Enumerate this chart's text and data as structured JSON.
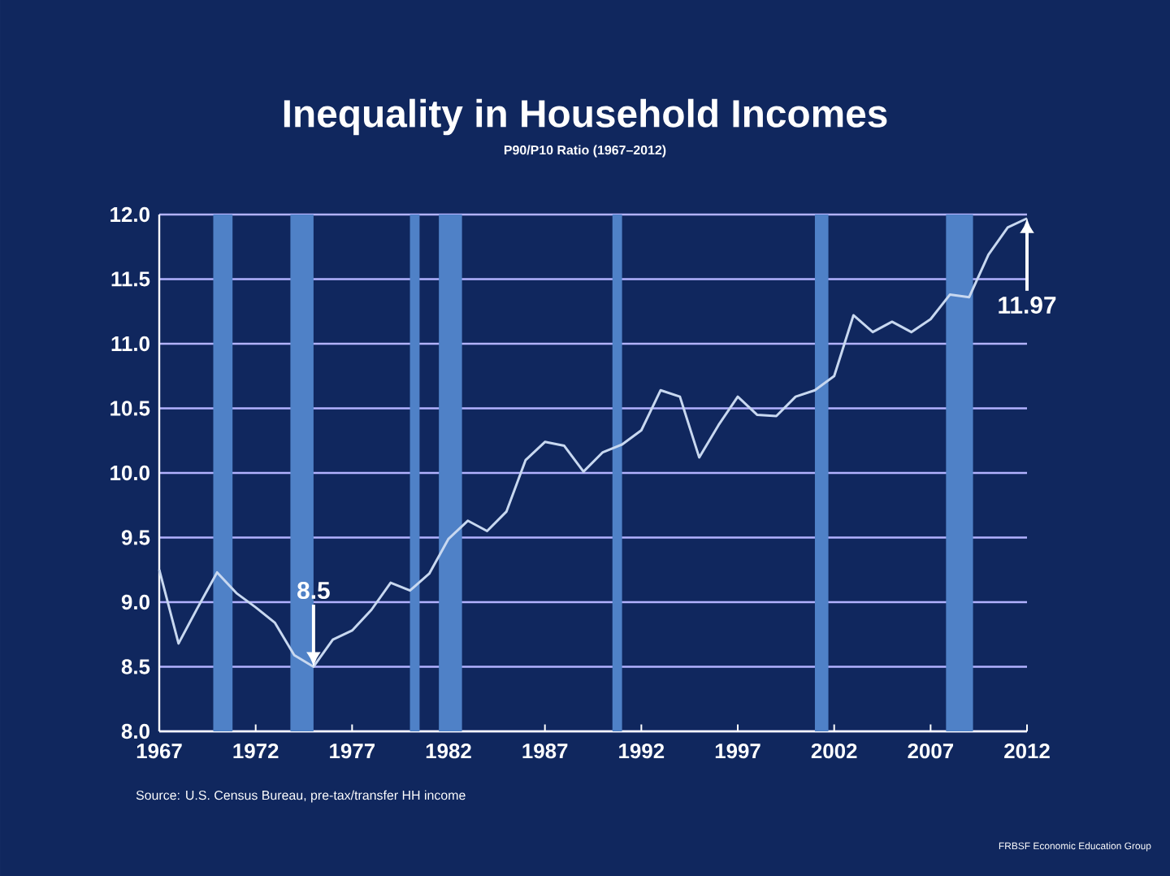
{
  "chart_data": {
    "type": "line",
    "title": "Inequality in Household Incomes",
    "subtitle": "P90/P10  Ratio (1967–2012)",
    "x": [
      1967,
      1968,
      1969,
      1970,
      1971,
      1972,
      1973,
      1974,
      1975,
      1976,
      1977,
      1978,
      1979,
      1980,
      1981,
      1982,
      1983,
      1984,
      1985,
      1986,
      1987,
      1988,
      1989,
      1990,
      1991,
      1992,
      1993,
      1994,
      1995,
      1996,
      1997,
      1998,
      1999,
      2000,
      2001,
      2002,
      2003,
      2004,
      2005,
      2006,
      2007,
      2008,
      2009,
      2010,
      2011,
      2012
    ],
    "series": [
      {
        "color": "#c8d8f0",
        "values": [
          9.25,
          8.68,
          8.96,
          9.23,
          9.07,
          8.96,
          8.84,
          8.59,
          8.5,
          8.71,
          8.78,
          8.94,
          9.15,
          9.09,
          9.22,
          9.49,
          9.63,
          9.55,
          9.7,
          10.1,
          10.24,
          10.21,
          10.01,
          10.16,
          10.22,
          10.33,
          10.64,
          10.59,
          10.12,
          10.37,
          10.59,
          10.45,
          10.44,
          10.59,
          10.64,
          10.75,
          11.22,
          11.09,
          11.17,
          11.09,
          11.19,
          11.38,
          11.36,
          11.69,
          11.9,
          11.97
        ]
      }
    ],
    "xlim": [
      1967,
      2012
    ],
    "ylim": [
      8,
      12
    ],
    "xticks": [
      1967,
      1972,
      1977,
      1982,
      1987,
      1992,
      1997,
      2002,
      2007,
      2012
    ],
    "yticks": [
      {
        "value": 8,
        "label": "8.0"
      },
      {
        "value": 8.5,
        "label": "8.5"
      },
      {
        "value": 9,
        "label": "9.0"
      },
      {
        "value": 9.5,
        "label": "9.5"
      },
      {
        "value": 10,
        "label": "10.0"
      },
      {
        "value": 10.5,
        "label": "10.5"
      },
      {
        "value": 11,
        "label": "11.0"
      },
      {
        "value": 11.5,
        "label": "11.5"
      },
      {
        "value": 12,
        "label": "12.0"
      }
    ],
    "grid": "y",
    "marker": "none",
    "line_style": "solid",
    "bands": [
      {
        "axis": "x",
        "from": 1969.8,
        "to": 1970.8,
        "color": "#4f81c7"
      },
      {
        "axis": "x",
        "from": 1973.8,
        "to": 1975.0,
        "color": "#4f81c7"
      },
      {
        "axis": "x",
        "from": 1980.0,
        "to": 1980.5,
        "color": "#4f81c7"
      },
      {
        "axis": "x",
        "from": 1981.5,
        "to": 1982.7,
        "color": "#4f81c7"
      },
      {
        "axis": "x",
        "from": 1990.5,
        "to": 1991.0,
        "color": "#4f81c7"
      },
      {
        "axis": "x",
        "from": 2001.0,
        "to": 2001.7,
        "color": "#4f81c7"
      },
      {
        "axis": "x",
        "from": 2007.8,
        "to": 2009.2,
        "color": "#4f81c7"
      }
    ],
    "annotations": [
      {
        "text": "8.5",
        "x": 1975,
        "y": 8.5
      },
      {
        "text": "11.97",
        "x": 2012,
        "y": 11.97
      },
      "Source: U.S. Census Bureau, pre-tax/transfer HH income",
      "FRBSF Economic Education Group"
    ]
  }
}
